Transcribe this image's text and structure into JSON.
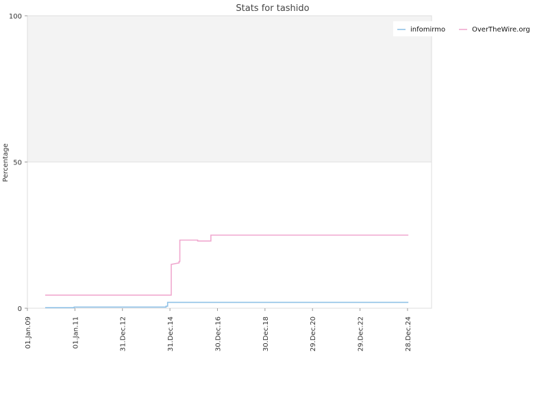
{
  "chart_data": {
    "type": "line",
    "title": "Stats for tashido",
    "xlabel": "",
    "ylabel": "Percentage",
    "ylim": [
      0,
      100
    ],
    "yticks": [
      "0",
      "50",
      "100"
    ],
    "xlim": [
      "2009-01-01",
      "2026-01-01"
    ],
    "xticks": [
      {
        "label": "01.Jan.09",
        "date": "2009-01-01"
      },
      {
        "label": "01.Jan.11",
        "date": "2011-01-01"
      },
      {
        "label": "31.Dec.12",
        "date": "2012-12-31"
      },
      {
        "label": "31.Dec.14",
        "date": "2014-12-31"
      },
      {
        "label": "30.Dec.16",
        "date": "2016-12-30"
      },
      {
        "label": "30.Dec.18",
        "date": "2018-12-30"
      },
      {
        "label": "29.Dec.20",
        "date": "2020-12-29"
      },
      {
        "label": "29.Dec.22",
        "date": "2022-12-29"
      },
      {
        "label": "28.Dec.24",
        "date": "2024-12-28"
      }
    ],
    "grid": false,
    "shaded_band": [
      50,
      100
    ],
    "legend_position": "top-right",
    "series": [
      {
        "name": "infomirmo",
        "color": "#8fc1e6",
        "points": [
          [
            "2009-10-01",
            0.2
          ],
          [
            "2010-12-20",
            0.2
          ],
          [
            "2010-12-20",
            0.4
          ],
          [
            "2014-11-01",
            0.4
          ],
          [
            "2014-11-01",
            0.7
          ],
          [
            "2014-11-25",
            0.7
          ],
          [
            "2014-11-25",
            2.0
          ],
          [
            "2025-01-10",
            2.0
          ]
        ]
      },
      {
        "name": "OverTheWire.org",
        "color": "#f0a8cf",
        "points": [
          [
            "2009-10-01",
            4.5
          ],
          [
            "2015-01-20",
            4.5
          ],
          [
            "2015-01-20",
            15.0
          ],
          [
            "2015-05-20",
            15.5
          ],
          [
            "2015-05-20",
            16.0
          ],
          [
            "2015-06-01",
            16.0
          ],
          [
            "2015-06-01",
            23.3
          ],
          [
            "2016-03-01",
            23.3
          ],
          [
            "2016-03-01",
            23.0
          ],
          [
            "2016-09-20",
            23.0
          ],
          [
            "2016-09-20",
            25.0
          ],
          [
            "2025-01-10",
            25.0
          ]
        ]
      }
    ]
  }
}
